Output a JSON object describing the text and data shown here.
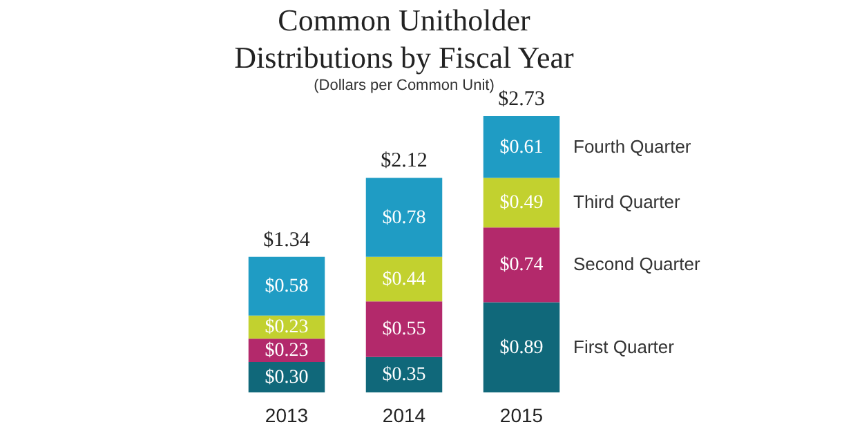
{
  "chart_data": {
    "type": "bar",
    "stacked": true,
    "title": [
      "Common Unitholder",
      "Distributions by Fiscal Year"
    ],
    "subtitle": "(Dollars per Common Unit)",
    "categories": [
      "2013",
      "2014",
      "2015"
    ],
    "series": [
      {
        "name": "First Quarter",
        "color": "#10687a",
        "values": [
          0.3,
          0.35,
          0.89
        ],
        "value_labels": [
          "$0.30",
          "$0.35",
          "$0.89"
        ]
      },
      {
        "name": "Second Quarter",
        "color": "#b3296b",
        "values": [
          0.23,
          0.55,
          0.74
        ],
        "value_labels": [
          "$0.23",
          "$0.55",
          "$0.74"
        ]
      },
      {
        "name": "Third Quarter",
        "color": "#c2d12f",
        "values": [
          0.23,
          0.44,
          0.49
        ],
        "value_labels": [
          "$0.23",
          "$0.44",
          "$0.49"
        ]
      },
      {
        "name": "Fourth Quarter",
        "color": "#1f9cc4",
        "values": [
          0.58,
          0.78,
          0.61
        ],
        "value_labels": [
          "$0.58",
          "$0.78",
          "$0.61"
        ]
      }
    ],
    "totals": [
      "$1.34",
      "$2.12",
      "$2.73"
    ],
    "grid": false
  }
}
